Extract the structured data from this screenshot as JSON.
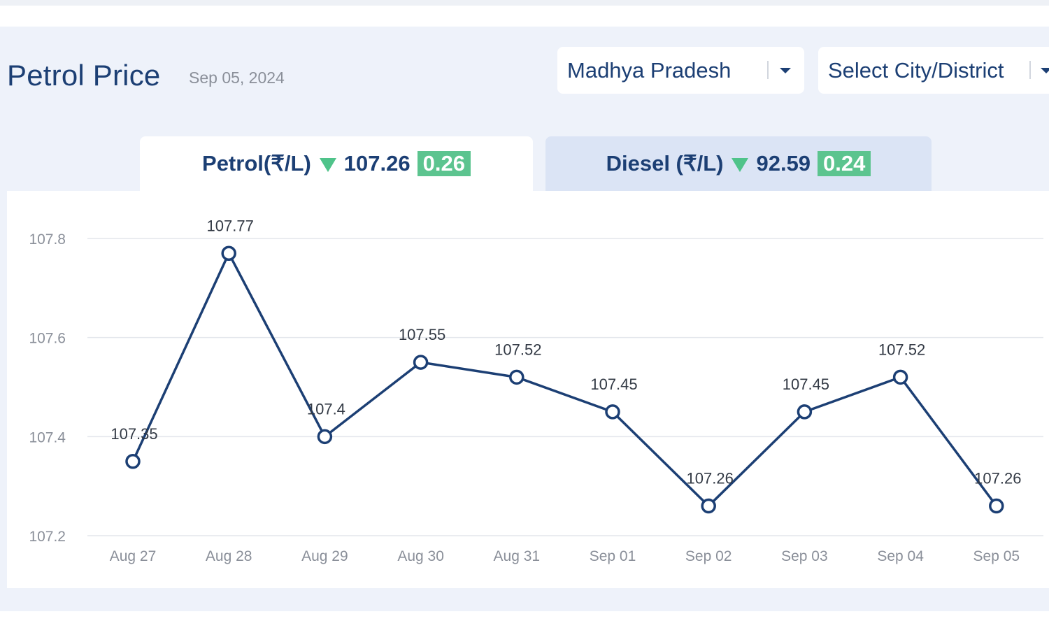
{
  "header": {
    "title": "Petrol Price",
    "date": "Sep 05, 2024"
  },
  "filters": {
    "state": {
      "selected": "Madhya Pradesh",
      "icon": "chevron-down-icon"
    },
    "city": {
      "placeholder": "Select City/District",
      "icon": "chevron-down-icon"
    }
  },
  "tabs": [
    {
      "label": "Petrol(₹/L)",
      "price": "107.26",
      "change": "0.26",
      "trend_icon": "down-triangle-icon",
      "active": true
    },
    {
      "label": "Diesel (₹/L)",
      "price": "92.59",
      "change": "0.24",
      "trend_icon": "down-triangle-icon",
      "active": false
    }
  ],
  "colors": {
    "title": "#1c3f74",
    "line": "#1c3f74",
    "trend_down": "#4fc38a",
    "badge": "#5cc48f",
    "panel_bg": "#eef2fa",
    "inactive_tab": "#dbe4f5",
    "grid": "#e3e6ec",
    "tick_text": "#8a8f99"
  },
  "chart_data": {
    "type": "line",
    "categories": [
      "Aug 27",
      "Aug 28",
      "Aug 29",
      "Aug 30",
      "Aug 31",
      "Sep 01",
      "Sep 02",
      "Sep 03",
      "Sep 04",
      "Sep 05"
    ],
    "series": [
      {
        "values": [
          107.35,
          107.77,
          107.4,
          107.55,
          107.52,
          107.45,
          107.26,
          107.45,
          107.52,
          107.26
        ],
        "data_labels": [
          "107.35",
          "107.77",
          "107.4",
          "107.55",
          "107.52",
          "107.45",
          "107.26",
          "107.45",
          "107.52",
          "107.26"
        ]
      }
    ],
    "yticks": [
      "107.2",
      "107.4",
      "107.6",
      "107.8"
    ],
    "ylim": [
      107.2,
      107.8
    ],
    "grid": true,
    "legend": false,
    "markers": "hollow-circle"
  }
}
